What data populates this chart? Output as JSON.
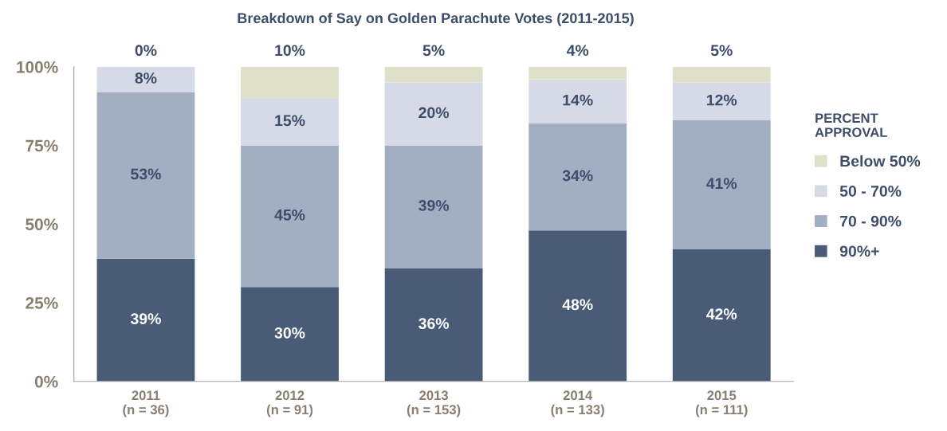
{
  "chart_data": {
    "type": "bar",
    "title": "Breakdown of Say on Golden Parachute Votes (2011-2015)",
    "categories": [
      "2011\n(n = 36)",
      "2012\n(n = 91)",
      "2013\n(n = 153)",
      "2014\n(n = 133)",
      "2015\n(n = 111)"
    ],
    "stacked": true,
    "series": [
      {
        "name": "90%+",
        "color": "#4a5b78",
        "values": [
          39,
          30,
          36,
          48,
          42
        ],
        "value_labels": [
          "39%",
          "30%",
          "36%",
          "48%",
          "42%"
        ]
      },
      {
        "name": "70 - 90%",
        "color": "#a2aec2",
        "values": [
          53,
          45,
          39,
          34,
          41
        ],
        "value_labels": [
          "53%",
          "45%",
          "39%",
          "34%",
          "41%"
        ]
      },
      {
        "name": "50 - 70%",
        "color": "#d5dae6",
        "values": [
          8,
          15,
          20,
          14,
          12
        ],
        "value_labels": [
          "8%",
          "15%",
          "20%",
          "14%",
          "12%"
        ]
      },
      {
        "name": "Below 50%",
        "color": "#dfe0c9",
        "values": [
          0,
          10,
          5,
          4,
          5
        ],
        "value_labels": [
          "0%",
          "10%",
          "5%",
          "4%",
          "5%"
        ]
      }
    ],
    "legend_title": "PERCENT\nAPPROVAL",
    "ylim": [
      0,
      100
    ],
    "yticks": [
      {
        "value": 0,
        "label": "0%"
      },
      {
        "value": 25,
        "label": "25%"
      },
      {
        "value": 50,
        "label": "50%"
      },
      {
        "value": 75,
        "label": "75%"
      },
      {
        "value": 100,
        "label": "100%"
      }
    ],
    "legend": "right",
    "grid": false
  }
}
